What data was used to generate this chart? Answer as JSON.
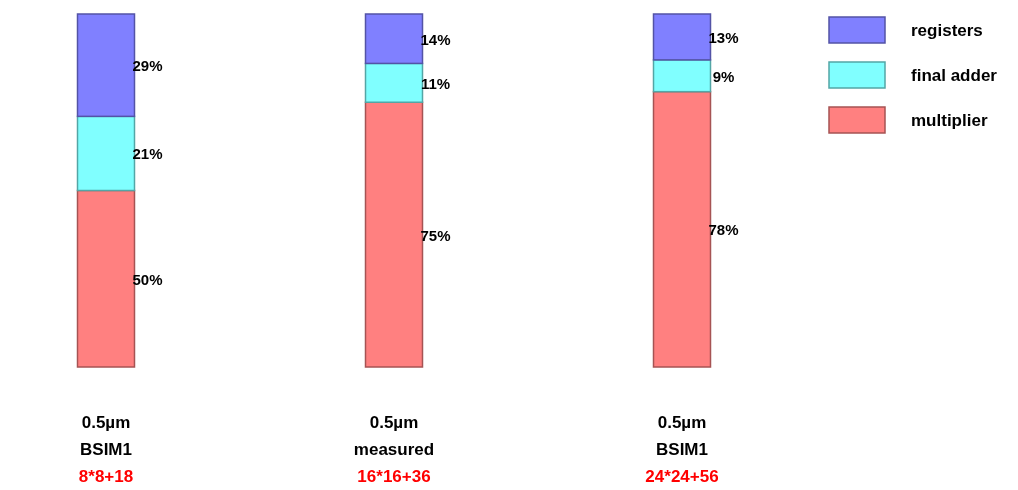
{
  "chart_data": {
    "type": "bar",
    "stacked": true,
    "legend": "top right",
    "categories": [
      "0.5µm\nBSIM1\n8*8+18",
      "0.5µm\nmeasured\n16*16+36",
      "0.5µm\nBSIM1\n24*24+56"
    ],
    "series": [
      {
        "name": "multiplier",
        "color": "#ff8080",
        "values": [
          50,
          75,
          78
        ],
        "value_labels": [
          "50%",
          "75%",
          "78%"
        ]
      },
      {
        "name": "final adder",
        "color": "#80ffff",
        "values": [
          21,
          11,
          9
        ],
        "value_labels": [
          "21%",
          "11%",
          "9%"
        ]
      },
      {
        "name": "registers",
        "color": "#8080ff",
        "values": [
          29,
          14,
          13
        ],
        "value_labels": [
          "29%",
          "14%",
          "13%"
        ]
      }
    ]
  }
}
